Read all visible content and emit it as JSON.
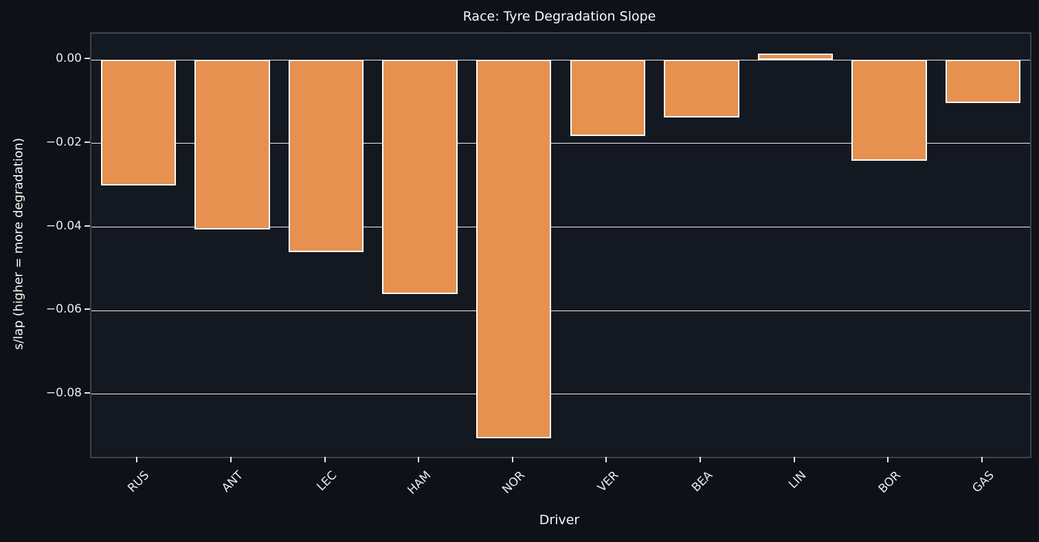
{
  "chart_data": {
    "type": "bar",
    "title": "Race: Tyre Degradation Slope",
    "xlabel": "Driver",
    "ylabel": "s/lap (higher = more degradation)",
    "categories": [
      "RUS",
      "ANT",
      "LEC",
      "HAM",
      "NOR",
      "VER",
      "BEA",
      "LIN",
      "BOR",
      "GAS"
    ],
    "values": [
      -0.03,
      -0.0406,
      -0.046,
      -0.0561,
      -0.0905,
      -0.0182,
      -0.0137,
      0.0016,
      -0.0242,
      -0.0103
    ],
    "ylim": [
      -0.095,
      0.0063
    ],
    "yticks": [
      {
        "value": 0.0,
        "label": "0.00"
      },
      {
        "value": -0.02,
        "label": "−0.02"
      },
      {
        "value": -0.04,
        "label": "−0.04"
      },
      {
        "value": -0.06,
        "label": "−0.06"
      },
      {
        "value": -0.08,
        "label": "−0.08"
      }
    ],
    "bar_width_frac": 0.8,
    "grid": true,
    "legend": null
  },
  "colors": {
    "background": "#0e1117",
    "plot_background": "#141821",
    "bar_fill": "#e6914f",
    "bar_edge": "#ffffff",
    "grid_line": "#eef0f2",
    "spine": "#3d4350",
    "text": "#fafafa",
    "tick_text": "#e9ebef"
  }
}
